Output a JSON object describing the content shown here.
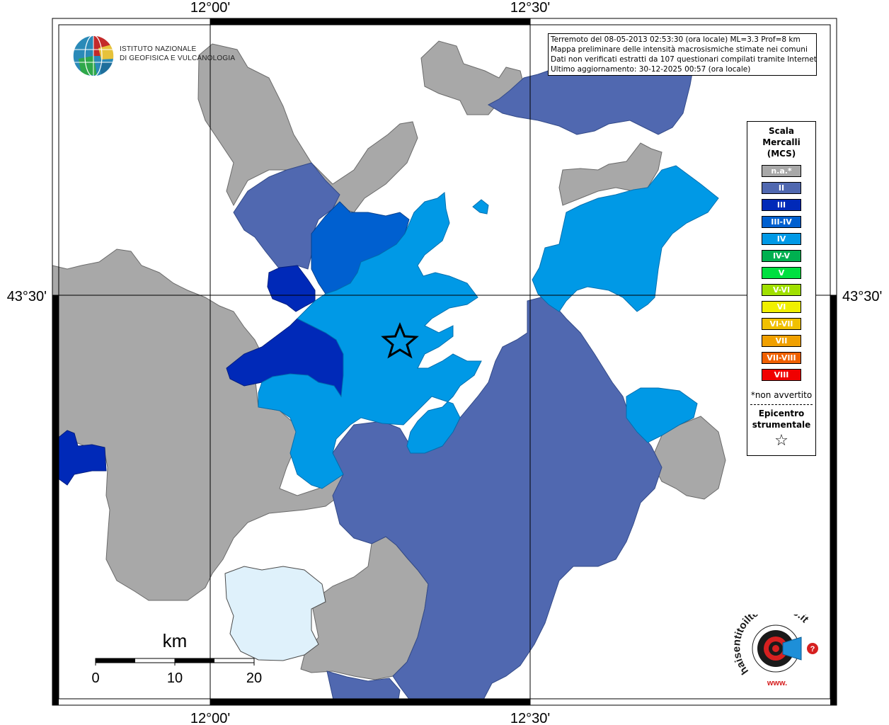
{
  "coords": {
    "lon_left": "12°00'",
    "lon_right": "12°30'",
    "lat": "43°30'"
  },
  "info": {
    "line1": "Terremoto del 08-05-2013 02:53:30 (ora locale) ML=3.3 Prof=8 km",
    "line2": "Mappa preliminare delle intensità macrosismiche stimate nei comuni",
    "line3": "Dati non verificati estratti da 107 questionari compilati tramite Internet.",
    "line4": "Ultimo aggiornamento: 30-12-2025 00:57 (ora locale)"
  },
  "legend": {
    "title": "Scala Mercalli (MCS)",
    "items": [
      {
        "label": "n.a.*",
        "color": "#a8a8a8"
      },
      {
        "label": "II",
        "color": "#5068b0"
      },
      {
        "label": "III",
        "color": "#0029b8"
      },
      {
        "label": "III-IV",
        "color": "#0060d0"
      },
      {
        "label": "IV",
        "color": "#0099e6"
      },
      {
        "label": "IV-V",
        "color": "#00b050"
      },
      {
        "label": "V",
        "color": "#00e040"
      },
      {
        "label": "V-VI",
        "color": "#a0e000"
      },
      {
        "label": "VI",
        "color": "#f0f000"
      },
      {
        "label": "VI-VII",
        "color": "#f0c000"
      },
      {
        "label": "VII",
        "color": "#f0a000"
      },
      {
        "label": "VII-VIII",
        "color": "#f06000"
      },
      {
        "label": "VIII",
        "color": "#f00000"
      }
    ],
    "note": "*non avvertito",
    "epicenter_label": "Epicentro strumentale",
    "epicenter_icon": "star-icon"
  },
  "scale": {
    "unit": "km",
    "ticks": [
      "0",
      "10",
      "20"
    ]
  },
  "logos": {
    "ingv_line1": "ISTITUTO NAZIONALE",
    "ingv_line2": "DI GEOFISICA E VULCANOLOGIA",
    "hsit_text": "haisentitoilterremoto.it",
    "hsit_www": "www."
  },
  "colors": {
    "na": "#a8a8a8",
    "II": "#5068b0",
    "III": "#0029b8",
    "III-IV": "#0060d0",
    "IV": "#0099e6",
    "lake": "#dff1fb"
  }
}
